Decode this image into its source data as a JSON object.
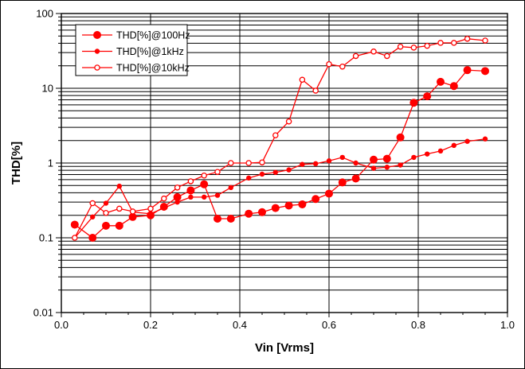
{
  "window": {
    "background": "#ffffff",
    "border_color": "#000000"
  },
  "chart_data": {
    "type": "line",
    "title": "",
    "xlabel": "Vin [Vrms]",
    "ylabel": "THD[%]",
    "x_axis": {
      "min": 0.0,
      "max": 1.0,
      "tick_values": [
        0.0,
        0.2,
        0.4,
        0.6,
        0.8,
        1.0
      ],
      "tick_labels": [
        "0.0",
        "0.2",
        "0.4",
        "0.6",
        "0.8",
        "1.0"
      ],
      "minor_tick_step": 0.05,
      "scale": "linear"
    },
    "y_axis": {
      "min": 0.01,
      "max": 100,
      "tick_values": [
        100,
        10,
        1,
        0.1,
        0.01
      ],
      "tick_labels": [
        "100",
        "10",
        "1",
        "0.1",
        "0.01"
      ],
      "scale": "log",
      "minor_gridlines": true
    },
    "grid": {
      "color": "#000000",
      "vertical_major": [
        0.2,
        0.4,
        0.6,
        0.8
      ]
    },
    "legend": {
      "position": "top-left",
      "border_color": "#000000",
      "background": "#ffffff"
    },
    "series_color": "#ff0000",
    "x": [
      0.03,
      0.07,
      0.1,
      0.13,
      0.16,
      0.2,
      0.23,
      0.26,
      0.29,
      0.32,
      0.35,
      0.38,
      0.42,
      0.45,
      0.48,
      0.51,
      0.54,
      0.57,
      0.6,
      0.63,
      0.66,
      0.7,
      0.73,
      0.76,
      0.79,
      0.82,
      0.85,
      0.88,
      0.91,
      0.95
    ],
    "series": [
      {
        "name": "THD[%]@100Hz",
        "marker": "circle-large-filled",
        "values": [
          0.15,
          0.1,
          0.145,
          0.145,
          0.19,
          0.2,
          0.26,
          0.35,
          0.43,
          0.52,
          0.18,
          0.18,
          0.21,
          0.22,
          0.25,
          0.27,
          0.28,
          0.33,
          0.39,
          0.55,
          0.62,
          1.11,
          1.14,
          2.2,
          6.4,
          7.8,
          12.2,
          10.7,
          17.5,
          17
        ]
      },
      {
        "name": "THD[%]@1kHz",
        "marker": "circle-small-filled",
        "values": [
          0.1,
          0.19,
          0.29,
          0.49,
          0.22,
          0.21,
          0.25,
          0.3,
          0.35,
          0.35,
          0.37,
          0.47,
          0.63,
          0.71,
          0.75,
          0.81,
          0.96,
          0.98,
          1.07,
          1.19,
          1.0,
          0.85,
          0.88,
          0.94,
          1.19,
          1.32,
          1.45,
          1.72,
          1.95,
          2.1
        ]
      },
      {
        "name": "THD[%]@10kHz",
        "marker": "circle-small-open",
        "values": [
          0.1,
          0.29,
          0.215,
          0.245,
          0.225,
          0.245,
          0.335,
          0.47,
          0.57,
          0.68,
          0.76,
          1.0,
          1.0,
          1.02,
          2.35,
          3.6,
          13,
          9.3,
          21,
          19.5,
          27,
          31,
          27,
          36,
          35,
          37,
          40.5,
          40.5,
          46,
          43.5
        ]
      }
    ]
  }
}
